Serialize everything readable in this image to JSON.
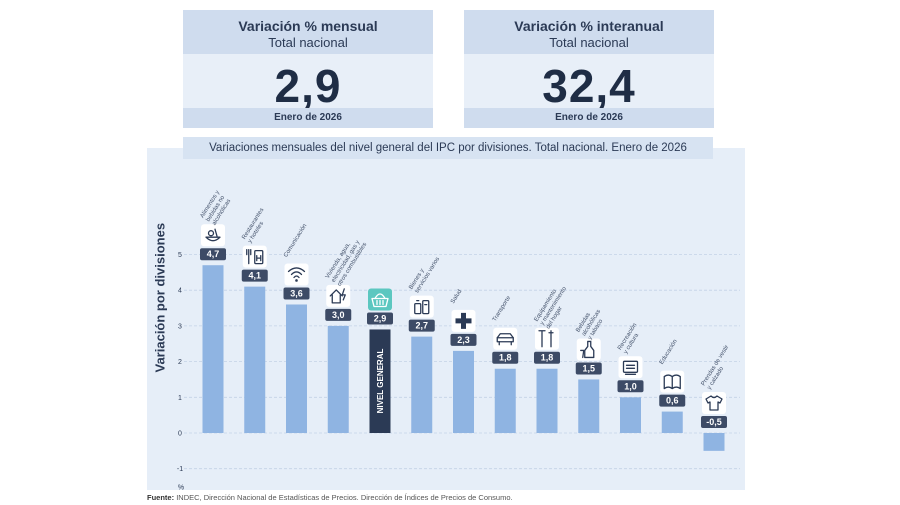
{
  "card_monthly": {
    "title": "Variación % mensual",
    "subtitle": "Total nacional",
    "value": "2,9",
    "date": "Enero de 2026"
  },
  "card_annual": {
    "title": "Variación % interanual",
    "subtitle": "Total nacional",
    "value": "32,4",
    "date": "Enero de 2026"
  },
  "chart_title": "Variaciones mensuales del nivel general del IPC por divisiones. Total nacional. Enero de 2026",
  "source": {
    "label": "Fuente:",
    "text": "INDEC, Dirección Nacional de Estadísticas de Precios. Dirección de Índices de Precios de Consumo."
  },
  "chart_data": {
    "type": "bar",
    "ylabel": "Variación por divisiones",
    "yunit": "%",
    "ylim": [
      -1,
      5
    ],
    "yticks": [
      "-1",
      "0",
      "1",
      "2",
      "3",
      "4",
      "5"
    ],
    "highlight_label": "NIVEL GENERAL",
    "categories": [
      {
        "name": "Alimentos y bebidas no alcohólicas",
        "lines": [
          "Alimentos y",
          "bebidas no",
          "alcohólicas"
        ],
        "value": 4.7,
        "label": "4,7",
        "icon": "food-icon"
      },
      {
        "name": "Restaurantes y hoteles",
        "lines": [
          "Restaurantes",
          "y hoteles"
        ],
        "value": 4.1,
        "label": "4,1",
        "icon": "restaurant-icon"
      },
      {
        "name": "Comunicación",
        "lines": [
          "Comunicación"
        ],
        "value": 3.6,
        "label": "3,6",
        "icon": "wifi-icon"
      },
      {
        "name": "Vivienda, agua, electricidad, gas y otros combustibles",
        "lines": [
          "Vivienda, agua,",
          "electricidad, gas y",
          "otros combustibles"
        ],
        "value": 3.0,
        "label": "3,0",
        "icon": "house-icon"
      },
      {
        "name": "Nivel general",
        "lines": [],
        "value": 2.9,
        "label": "2,9",
        "icon": "basket-icon",
        "highlight": true
      },
      {
        "name": "Bienes y servicios varios",
        "lines": [
          "Bienes y",
          "servicios varios"
        ],
        "value": 2.7,
        "label": "2,7",
        "icon": "goods-icon"
      },
      {
        "name": "Salud",
        "lines": [
          "Salud"
        ],
        "value": 2.3,
        "label": "2,3",
        "icon": "health-icon"
      },
      {
        "name": "Transporte",
        "lines": [
          "Transporte"
        ],
        "value": 1.8,
        "label": "1,8",
        "icon": "car-icon"
      },
      {
        "name": "Equipamiento y mantenimiento del hogar",
        "lines": [
          "Equipamiento",
          "y mantenimiento",
          "del hogar"
        ],
        "value": 1.8,
        "label": "1,8",
        "icon": "tools-icon"
      },
      {
        "name": "Bebidas alcohólicas y tabaco",
        "lines": [
          "Bebidas",
          "alcohólicas",
          "y tabaco"
        ],
        "value": 1.5,
        "label": "1,5",
        "icon": "bottle-icon"
      },
      {
        "name": "Recreación y cultura",
        "lines": [
          "Recreación",
          "y cultura"
        ],
        "value": 1.0,
        "label": "1,0",
        "icon": "culture-icon"
      },
      {
        "name": "Educación",
        "lines": [
          "Educación"
        ],
        "value": 0.6,
        "label": "0,6",
        "icon": "book-icon"
      },
      {
        "name": "Prendas de vestir y calzado",
        "lines": [
          "Prendas de vestir",
          "y calzado"
        ],
        "value": -0.5,
        "label": "-0,5",
        "icon": "shirt-icon"
      }
    ]
  }
}
